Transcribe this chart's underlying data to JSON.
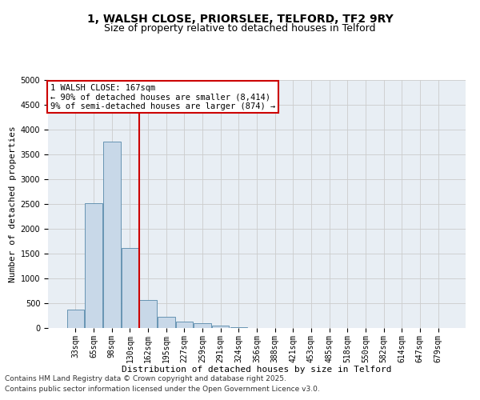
{
  "title_line1": "1, WALSH CLOSE, PRIORSLEE, TELFORD, TF2 9RY",
  "title_line2": "Size of property relative to detached houses in Telford",
  "xlabel": "Distribution of detached houses by size in Telford",
  "ylabel": "Number of detached properties",
  "categories": [
    "33sqm",
    "65sqm",
    "98sqm",
    "130sqm",
    "162sqm",
    "195sqm",
    "227sqm",
    "259sqm",
    "291sqm",
    "324sqm",
    "356sqm",
    "388sqm",
    "421sqm",
    "453sqm",
    "485sqm",
    "518sqm",
    "550sqm",
    "582sqm",
    "614sqm",
    "647sqm",
    "679sqm"
  ],
  "values": [
    370,
    2510,
    3760,
    1610,
    570,
    230,
    130,
    90,
    50,
    20,
    8,
    3,
    1,
    0,
    0,
    0,
    0,
    0,
    0,
    0,
    0
  ],
  "bar_color": "#c8d8e8",
  "bar_edge_color": "#5588aa",
  "vline_color": "#cc0000",
  "annotation_box_color": "#cc0000",
  "annotation_text_line1": "1 WALSH CLOSE: 167sqm",
  "annotation_text_line2": "← 90% of detached houses are smaller (8,414)",
  "annotation_text_line3": "9% of semi-detached houses are larger (874) →",
  "ylim": [
    0,
    5000
  ],
  "yticks": [
    0,
    500,
    1000,
    1500,
    2000,
    2500,
    3000,
    3500,
    4000,
    4500,
    5000
  ],
  "grid_color": "#cccccc",
  "bg_color": "#e8eef4",
  "footnote_line1": "Contains HM Land Registry data © Crown copyright and database right 2025.",
  "footnote_line2": "Contains public sector information licensed under the Open Government Licence v3.0.",
  "title_fontsize": 10,
  "subtitle_fontsize": 9,
  "axis_label_fontsize": 8,
  "tick_fontsize": 7,
  "annotation_fontsize": 7.5,
  "footnote_fontsize": 6.5
}
